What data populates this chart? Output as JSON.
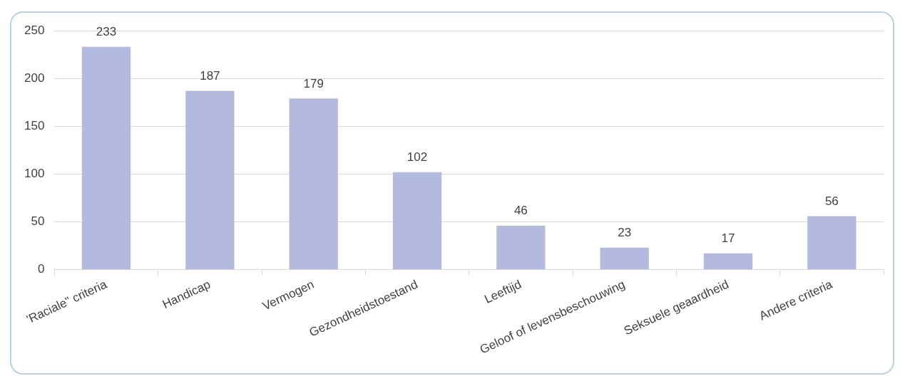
{
  "chart_data": {
    "type": "bar",
    "categories": [
      "'Raciale\" criteria",
      "Handicap",
      "Vermogen",
      "Gezondheidstoestand",
      "Leeftijd",
      "Geloof of levensbeschouwing",
      "Seksuele geaardheid",
      "Andere criteria"
    ],
    "values": [
      233,
      187,
      179,
      102,
      46,
      23,
      17,
      56
    ],
    "color": "#b4bade",
    "ylim": [
      0,
      250
    ],
    "yticks": [
      0,
      50,
      100,
      150,
      200,
      250
    ],
    "grid": "y",
    "data_labels": true,
    "legend": false
  }
}
